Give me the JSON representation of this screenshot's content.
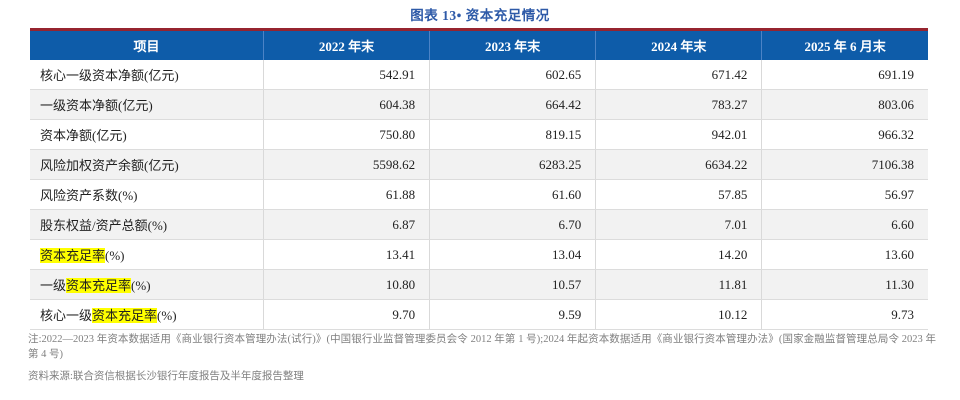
{
  "title": "图表 13• 资本充足情况",
  "colors": {
    "title_blue": "#2E5AA8",
    "header_bg": "#0E5CA9",
    "top_rule_red": "#96242F",
    "stripe_gray": "#F2F2F2",
    "highlight_yellow": "#FFFF00",
    "note_gray": "#7F7F7F"
  },
  "table": {
    "headers": [
      "项目",
      "2022 年末",
      "2023 年末",
      "2024 年末",
      "2025 年 6 月末"
    ],
    "rows": [
      {
        "prefix": "核心一级资本净额(亿元)",
        "highlight": "",
        "suffix": "",
        "values": [
          "542.91",
          "602.65",
          "671.42",
          "691.19"
        ]
      },
      {
        "prefix": "一级资本净额(亿元)",
        "highlight": "",
        "suffix": "",
        "values": [
          "604.38",
          "664.42",
          "783.27",
          "803.06"
        ]
      },
      {
        "prefix": "资本净额(亿元)",
        "highlight": "",
        "suffix": "",
        "values": [
          "750.80",
          "819.15",
          "942.01",
          "966.32"
        ]
      },
      {
        "prefix": "风险加权资产余额(亿元)",
        "highlight": "",
        "suffix": "",
        "values": [
          "5598.62",
          "6283.25",
          "6634.22",
          "7106.38"
        ]
      },
      {
        "prefix": "风险资产系数(%)",
        "highlight": "",
        "suffix": "",
        "values": [
          "61.88",
          "61.60",
          "57.85",
          "56.97"
        ]
      },
      {
        "prefix": "股东权益/资产总额(%)",
        "highlight": "",
        "suffix": "",
        "values": [
          "6.87",
          "6.70",
          "7.01",
          "6.60"
        ]
      },
      {
        "prefix": "",
        "highlight": "资本充足率",
        "suffix": "(%)",
        "values": [
          "13.41",
          "13.04",
          "14.20",
          "13.60"
        ]
      },
      {
        "prefix": "一级",
        "highlight": "资本充足率",
        "suffix": "(%)",
        "values": [
          "10.80",
          "10.57",
          "11.81",
          "11.30"
        ]
      },
      {
        "prefix": "核心一级",
        "highlight": "资本充足率",
        "suffix": "(%)",
        "values": [
          "9.70",
          "9.59",
          "10.12",
          "9.73"
        ]
      }
    ]
  },
  "footnote": "注:2022—2023 年资本数据适用《商业银行资本管理办法(试行)》(中国银行业监督管理委员会令 2012 年第 1 号);2024 年起资本数据适用《商业银行资本管理办法》(国家金融监督管理总局令 2023 年第 4 号)",
  "source": "资料来源:联合资信根据长沙银行年度报告及半年度报告整理"
}
